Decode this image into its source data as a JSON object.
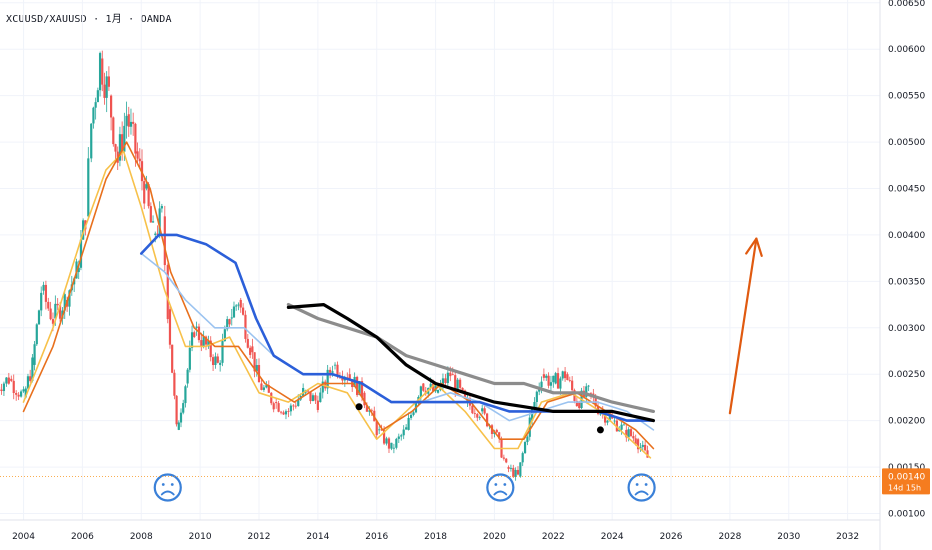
{
  "header": {
    "symbol": "XCUUSD/XAUUSD · 1月 · OANDA"
  },
  "chart_data": {
    "type": "candlestick",
    "x_ticks": [
      "2004",
      "2006",
      "2008",
      "2010",
      "2012",
      "2014",
      "2016",
      "2018",
      "2020",
      "2022",
      "2024",
      "2026",
      "2028",
      "2030",
      "2032"
    ],
    "y_ticks": [
      "0.00650",
      "0.00600",
      "0.00550",
      "0.00500",
      "0.00450",
      "0.00400",
      "0.00350",
      "0.00300",
      "0.00250",
      "0.00200",
      "0.00150",
      "0.00100"
    ],
    "xlim": [
      2003.2,
      2033.1
    ],
    "ylim": [
      0.00093,
      0.00653
    ],
    "price": {
      "label": "0.00140",
      "value": 0.0014,
      "countdown": "14d 15h"
    },
    "candles": [
      [
        2003.0,
        0.00235,
        0.00245
      ],
      [
        2003.5,
        0.00245,
        0.00225
      ],
      [
        2004.0,
        0.00225,
        0.0026
      ],
      [
        2004.3,
        0.0026,
        0.0034
      ],
      [
        2004.6,
        0.0034,
        0.0031
      ],
      [
        2005.0,
        0.0031,
        0.0033
      ],
      [
        2005.4,
        0.0033,
        0.0036
      ],
      [
        2005.8,
        0.0036,
        0.0042
      ],
      [
        2006.1,
        0.0042,
        0.0052
      ],
      [
        2006.3,
        0.0052,
        0.0059
      ],
      [
        2006.6,
        0.0059,
        0.0055
      ],
      [
        2006.9,
        0.0055,
        0.0048
      ],
      [
        2007.2,
        0.0048,
        0.0053
      ],
      [
        2007.5,
        0.0053,
        0.0049
      ],
      [
        2007.8,
        0.0049,
        0.0045
      ],
      [
        2008.1,
        0.0045,
        0.004
      ],
      [
        2008.4,
        0.004,
        0.0042
      ],
      [
        2008.7,
        0.0042,
        0.0032
      ],
      [
        2008.9,
        0.0032,
        0.0019
      ],
      [
        2009.2,
        0.0019,
        0.0024
      ],
      [
        2009.5,
        0.0024,
        0.003
      ],
      [
        2009.8,
        0.003,
        0.0028
      ],
      [
        2010.2,
        0.0028,
        0.0026
      ],
      [
        2010.6,
        0.0026,
        0.0031
      ],
      [
        2011.0,
        0.0031,
        0.0033
      ],
      [
        2011.3,
        0.0033,
        0.0028
      ],
      [
        2011.7,
        0.0028,
        0.0024
      ],
      [
        2012.0,
        0.0024,
        0.0022
      ],
      [
        2012.5,
        0.0022,
        0.0021
      ],
      [
        2013.0,
        0.0021,
        0.0023
      ],
      [
        2013.5,
        0.0023,
        0.0022
      ],
      [
        2014.0,
        0.0022,
        0.0026
      ],
      [
        2014.5,
        0.0026,
        0.0025
      ],
      [
        2015.0,
        0.0025,
        0.0023
      ],
      [
        2015.5,
        0.0023,
        0.0019
      ],
      [
        2016.0,
        0.0019,
        0.0017
      ],
      [
        2016.5,
        0.0017,
        0.0019
      ],
      [
        2017.0,
        0.0019,
        0.0024
      ],
      [
        2017.5,
        0.0024,
        0.0023
      ],
      [
        2018.0,
        0.0023,
        0.0025
      ],
      [
        2018.5,
        0.0025,
        0.0022
      ],
      [
        2019.0,
        0.0022,
        0.0021
      ],
      [
        2019.5,
        0.0021,
        0.0019
      ],
      [
        2020.0,
        0.0019,
        0.0015
      ],
      [
        2020.4,
        0.0015,
        0.0014
      ],
      [
        2020.8,
        0.0014,
        0.002
      ],
      [
        2021.2,
        0.002,
        0.0025
      ],
      [
        2021.6,
        0.0025,
        0.0024
      ],
      [
        2022.0,
        0.0024,
        0.0025
      ],
      [
        2022.4,
        0.0025,
        0.0022
      ],
      [
        2022.8,
        0.0022,
        0.0023
      ],
      [
        2023.2,
        0.0023,
        0.0021
      ],
      [
        2023.6,
        0.0021,
        0.002
      ],
      [
        2024.0,
        0.002,
        0.0019
      ],
      [
        2024.4,
        0.0019,
        0.0018
      ],
      [
        2024.8,
        0.0018,
        0.0016
      ],
      [
        2025.2,
        0.0016,
        0.0014
      ]
    ],
    "series": [
      {
        "type": "ma",
        "color": "#f7c14a",
        "points": [
          [
            2004.0,
            0.0022
          ],
          [
            2005.0,
            0.003
          ],
          [
            2006.0,
            0.004
          ],
          [
            2006.8,
            0.0047
          ],
          [
            2007.4,
            0.0049
          ],
          [
            2008.0,
            0.0043
          ],
          [
            2008.8,
            0.0034
          ],
          [
            2009.5,
            0.0028
          ],
          [
            2010.2,
            0.0028
          ],
          [
            2011.0,
            0.0029
          ],
          [
            2012.0,
            0.0023
          ],
          [
            2013.0,
            0.0022
          ],
          [
            2014.0,
            0.0024
          ],
          [
            2015.0,
            0.0023
          ],
          [
            2016.0,
            0.0018
          ],
          [
            2017.0,
            0.0021
          ],
          [
            2018.0,
            0.0024
          ],
          [
            2019.0,
            0.0021
          ],
          [
            2020.0,
            0.0017
          ],
          [
            2020.8,
            0.0017
          ],
          [
            2021.6,
            0.0022
          ],
          [
            2022.6,
            0.0023
          ],
          [
            2023.6,
            0.0021
          ],
          [
            2024.6,
            0.0018
          ],
          [
            2025.3,
            0.0016
          ]
        ]
      },
      {
        "type": "ma",
        "color": "#e8701d",
        "points": [
          [
            2004.0,
            0.0021
          ],
          [
            2005.0,
            0.0028
          ],
          [
            2006.0,
            0.0038
          ],
          [
            2006.8,
            0.0046
          ],
          [
            2007.5,
            0.005
          ],
          [
            2008.3,
            0.0045
          ],
          [
            2009.0,
            0.0036
          ],
          [
            2009.8,
            0.003
          ],
          [
            2010.5,
            0.0028
          ],
          [
            2011.3,
            0.0028
          ],
          [
            2012.2,
            0.0024
          ],
          [
            2013.2,
            0.0022
          ],
          [
            2014.2,
            0.0024
          ],
          [
            2015.2,
            0.0024
          ],
          [
            2016.2,
            0.0019
          ],
          [
            2017.2,
            0.0021
          ],
          [
            2018.2,
            0.0024
          ],
          [
            2019.2,
            0.0022
          ],
          [
            2020.2,
            0.0018
          ],
          [
            2021.0,
            0.0018
          ],
          [
            2021.8,
            0.0022
          ],
          [
            2022.8,
            0.0023
          ],
          [
            2023.8,
            0.0021
          ],
          [
            2024.8,
            0.0019
          ],
          [
            2025.4,
            0.0017
          ]
        ]
      },
      {
        "type": "ma",
        "color": "#9bc3f0",
        "points": [
          [
            2008.0,
            0.0038
          ],
          [
            2008.8,
            0.0036
          ],
          [
            2009.5,
            0.0033
          ],
          [
            2010.5,
            0.003
          ],
          [
            2011.5,
            0.003
          ],
          [
            2012.5,
            0.0027
          ],
          [
            2013.5,
            0.0025
          ],
          [
            2014.5,
            0.0025
          ],
          [
            2015.5,
            0.0024
          ],
          [
            2016.5,
            0.0022
          ],
          [
            2017.5,
            0.0022
          ],
          [
            2018.5,
            0.0023
          ],
          [
            2019.5,
            0.0022
          ],
          [
            2020.5,
            0.002
          ],
          [
            2021.5,
            0.0021
          ],
          [
            2022.5,
            0.0022
          ],
          [
            2023.5,
            0.0022
          ],
          [
            2024.5,
            0.0021
          ],
          [
            2025.4,
            0.0019
          ]
        ]
      },
      {
        "type": "ma",
        "color": "#2b5fd9",
        "points": [
          [
            2008.0,
            0.0038
          ],
          [
            2008.6,
            0.004
          ],
          [
            2009.2,
            0.004
          ],
          [
            2010.2,
            0.0039
          ],
          [
            2011.2,
            0.0037
          ],
          [
            2011.9,
            0.0031
          ],
          [
            2012.5,
            0.0027
          ],
          [
            2013.5,
            0.0025
          ],
          [
            2014.5,
            0.0025
          ],
          [
            2015.5,
            0.0024
          ],
          [
            2016.5,
            0.0022
          ],
          [
            2017.5,
            0.0022
          ],
          [
            2018.5,
            0.0022
          ],
          [
            2019.5,
            0.0022
          ],
          [
            2020.5,
            0.0021
          ],
          [
            2021.5,
            0.0021
          ],
          [
            2022.5,
            0.0021
          ],
          [
            2023.5,
            0.0021
          ],
          [
            2024.5,
            0.002
          ],
          [
            2025.4,
            0.002
          ]
        ]
      },
      {
        "type": "ma",
        "color": "#8c8c8c",
        "points": [
          [
            2013.0,
            0.00325
          ],
          [
            2014.0,
            0.0031
          ],
          [
            2015.0,
            0.003
          ],
          [
            2016.0,
            0.0029
          ],
          [
            2017.0,
            0.0027
          ],
          [
            2018.0,
            0.0026
          ],
          [
            2019.0,
            0.0025
          ],
          [
            2020.0,
            0.0024
          ],
          [
            2021.0,
            0.0024
          ],
          [
            2022.0,
            0.0023
          ],
          [
            2023.0,
            0.0023
          ],
          [
            2024.0,
            0.0022
          ],
          [
            2025.4,
            0.0021
          ]
        ]
      },
      {
        "type": "ma",
        "color": "#000000",
        "points": [
          [
            2013.0,
            0.00322
          ],
          [
            2014.2,
            0.00325
          ],
          [
            2015.0,
            0.0031
          ],
          [
            2016.0,
            0.0029
          ],
          [
            2017.0,
            0.0026
          ],
          [
            2018.0,
            0.0024
          ],
          [
            2019.0,
            0.0023
          ],
          [
            2020.0,
            0.0022
          ],
          [
            2021.0,
            0.00215
          ],
          [
            2022.0,
            0.0021
          ],
          [
            2023.0,
            0.0021
          ],
          [
            2024.0,
            0.0021
          ],
          [
            2025.4,
            0.002
          ]
        ]
      }
    ],
    "arrow": {
      "color": "#e05a10",
      "from": [
        2028.0,
        0.00208
      ],
      "to": [
        2028.9,
        0.00396
      ]
    },
    "sad_faces": [
      [
        2008.9,
        0.00128
      ],
      [
        2020.2,
        0.00128
      ],
      [
        2025.0,
        0.00128
      ]
    ],
    "black_dots": [
      [
        2015.4,
        0.00215
      ],
      [
        2020.4,
        0.00137
      ],
      [
        2023.6,
        0.0019
      ]
    ]
  }
}
